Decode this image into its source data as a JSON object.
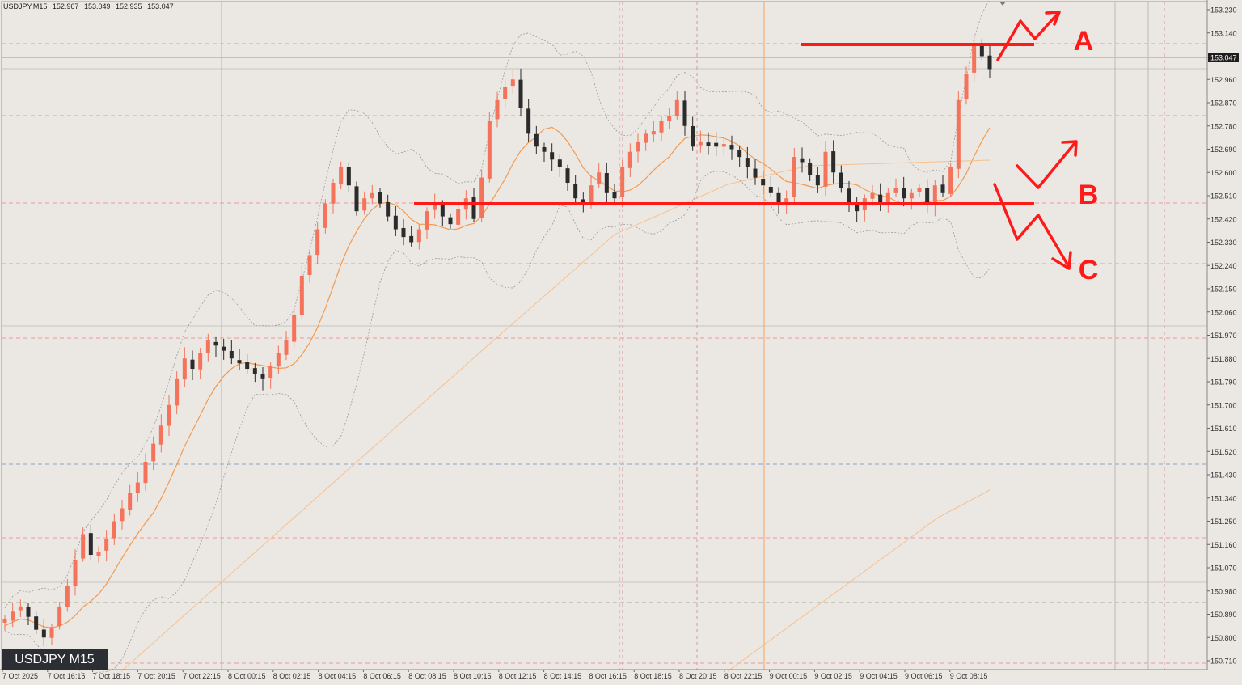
{
  "header": {
    "symbol_tf": "USDJPY,M15",
    "open": "152.967",
    "high": "153.049",
    "low": "152.935",
    "close": "153.047"
  },
  "symbol_label": "USDJPY M15",
  "current_price_label": "153.047",
  "colors": {
    "background": "#ebe7e3",
    "bull_candle": "#f4735a",
    "bear_candle": "#2b2b2b",
    "ma_fast": "#f39a4e",
    "ma_slow": "#f7c08e",
    "bollinger": "#9a9a9a",
    "annotation": "#ff1a1a",
    "session_line": "#f4a35c",
    "level_dash": "#ef9a9a"
  },
  "annotations": {
    "label_a": "A",
    "label_b": "B",
    "label_c": "C"
  },
  "chart_data": {
    "type": "candlestick",
    "ylim": [
      150.66,
      153.27
    ],
    "y_ticks": [
      "153.230",
      "153.140",
      "153.047",
      "152.960",
      "152.870",
      "152.780",
      "152.690",
      "152.600",
      "152.510",
      "152.420",
      "152.330",
      "152.240",
      "152.150",
      "152.060",
      "151.970",
      "151.880",
      "151.790",
      "151.700",
      "151.610",
      "151.520",
      "151.430",
      "151.340",
      "151.250",
      "151.160",
      "151.070",
      "150.980",
      "150.890",
      "150.800",
      "150.710"
    ],
    "x_ticks": [
      "7 Oct 2025",
      "7 Oct 16:15",
      "7 Oct 18:15",
      "7 Oct 20:15",
      "7 Oct 22:15",
      "8 Oct 00:15",
      "8 Oct 02:15",
      "8 Oct 04:15",
      "8 Oct 06:15",
      "8 Oct 08:15",
      "8 Oct 10:15",
      "8 Oct 12:15",
      "8 Oct 14:15",
      "8 Oct 16:15",
      "8 Oct 18:15",
      "8 Oct 20:15",
      "8 Oct 22:15",
      "9 Oct 00:15",
      "9 Oct 02:15",
      "9 Oct 04:15",
      "9 Oct 06:15",
      "9 Oct 08:15"
    ],
    "close_path": [
      150.87,
      150.9,
      150.92,
      150.88,
      150.83,
      150.8,
      150.84,
      150.92,
      151.0,
      151.1,
      151.2,
      151.12,
      151.13,
      151.18,
      151.25,
      151.3,
      151.36,
      151.4,
      151.48,
      151.55,
      151.62,
      151.7,
      151.8,
      151.88,
      151.84,
      151.9,
      151.95,
      151.93,
      151.91,
      151.88,
      151.87,
      151.84,
      151.82,
      151.8,
      151.85,
      151.9,
      151.95,
      152.05,
      152.2,
      152.28,
      152.38,
      152.48,
      152.56,
      152.62,
      152.55,
      152.45,
      152.5,
      152.52,
      152.48,
      152.43,
      152.38,
      152.35,
      152.33,
      152.38,
      152.45,
      152.48,
      152.43,
      152.4,
      152.46,
      152.5,
      152.42,
      152.58,
      152.8,
      152.88,
      152.93,
      152.96,
      152.85,
      152.75,
      152.7,
      152.68,
      152.65,
      152.62,
      152.56,
      152.5,
      152.48,
      152.55,
      152.6,
      152.52,
      152.5,
      152.62,
      152.68,
      152.72,
      152.75,
      152.76,
      152.8,
      152.82,
      152.88,
      152.78,
      152.7,
      152.72,
      152.71,
      152.7,
      152.71,
      152.69,
      152.66,
      152.62,
      152.58,
      152.55,
      152.52,
      152.48,
      152.5,
      152.66,
      152.64,
      152.59,
      152.55,
      152.68,
      152.6,
      152.54,
      152.48,
      152.45,
      152.5,
      152.52,
      152.48,
      152.52,
      152.54,
      152.5,
      152.52,
      152.54,
      152.48,
      152.55,
      152.52,
      152.62,
      152.88,
      152.98,
      153.1,
      153.05,
      153.0
    ]
  }
}
